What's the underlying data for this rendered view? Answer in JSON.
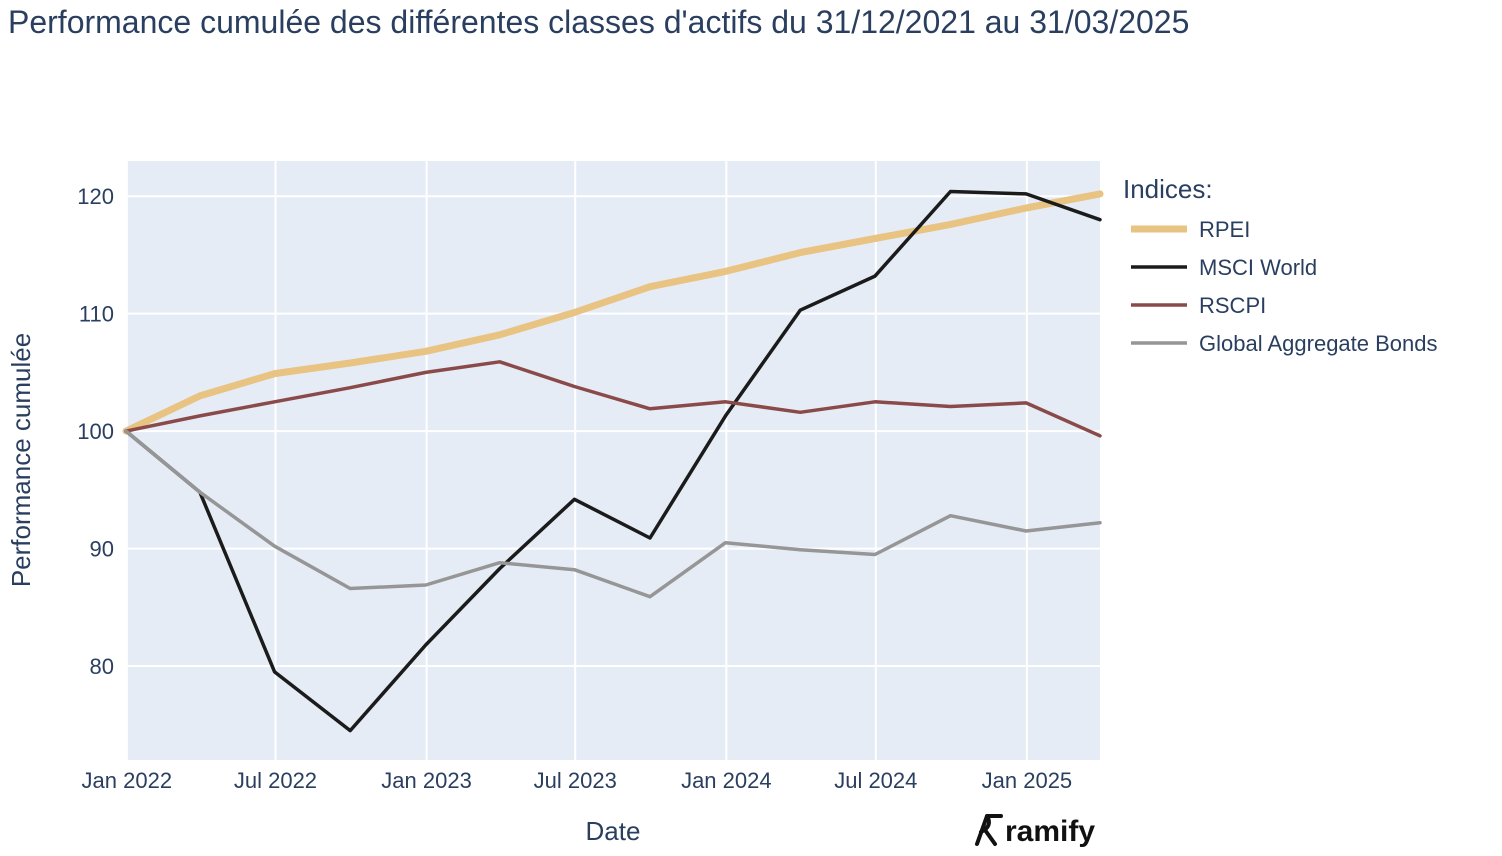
{
  "chart_data": {
    "type": "line",
    "title": "Performance cumulée des différentes classes d'actifs du 31/12/2021 au 31/03/2025",
    "xlabel": "Date",
    "ylabel": "Performance cumulée",
    "x": [
      "2021-12-31",
      "2022-03-31",
      "2022-06-30",
      "2022-09-30",
      "2022-12-31",
      "2023-03-31",
      "2023-06-30",
      "2023-09-30",
      "2023-12-31",
      "2024-03-31",
      "2024-06-30",
      "2024-09-30",
      "2024-12-31",
      "2025-03-31"
    ],
    "xlim": [
      "2021-12-31",
      "2025-03-31"
    ],
    "ylim": [
      72,
      123
    ],
    "x_ticks": [
      {
        "date": "2022-01-01",
        "label": "Jan 2022"
      },
      {
        "date": "2022-07-01",
        "label": "Jul 2022"
      },
      {
        "date": "2023-01-01",
        "label": "Jan 2023"
      },
      {
        "date": "2023-07-01",
        "label": "Jul 2023"
      },
      {
        "date": "2024-01-01",
        "label": "Jan 2024"
      },
      {
        "date": "2024-07-01",
        "label": "Jul 2024"
      },
      {
        "date": "2025-01-01",
        "label": "Jan 2025"
      }
    ],
    "y_ticks": [
      80,
      90,
      100,
      110,
      120
    ],
    "grid": true,
    "legend_title": "Indices:",
    "legend_position": "right",
    "series": [
      {
        "name": "RPEI",
        "color": "#e8c382",
        "values": [
          100,
          103,
          104.9,
          105.8,
          106.8,
          108.2,
          110.1,
          112.3,
          113.6,
          115.2,
          116.4,
          117.6,
          119.0,
          120.2
        ]
      },
      {
        "name": "MSCI World",
        "color": "#1b1b1b",
        "values": [
          100,
          94.8,
          79.5,
          74.5,
          81.8,
          88.3,
          94.2,
          90.9,
          101.3,
          110.3,
          113.2,
          120.4,
          120.2,
          118.0
        ]
      },
      {
        "name": "RSCPI",
        "color": "#8b4a4a",
        "values": [
          100,
          101.3,
          102.5,
          103.7,
          105.0,
          105.9,
          103.8,
          101.9,
          102.5,
          101.6,
          102.5,
          102.1,
          102.4,
          99.6
        ]
      },
      {
        "name": "Global Aggregate Bonds",
        "color": "#969696",
        "values": [
          100,
          94.8,
          90.2,
          86.6,
          86.9,
          88.8,
          88.2,
          85.9,
          90.5,
          89.9,
          89.5,
          92.8,
          91.5,
          92.2
        ]
      }
    ]
  },
  "brand": {
    "name": "ramify",
    "logo_icon": "ramify-logo-icon"
  }
}
